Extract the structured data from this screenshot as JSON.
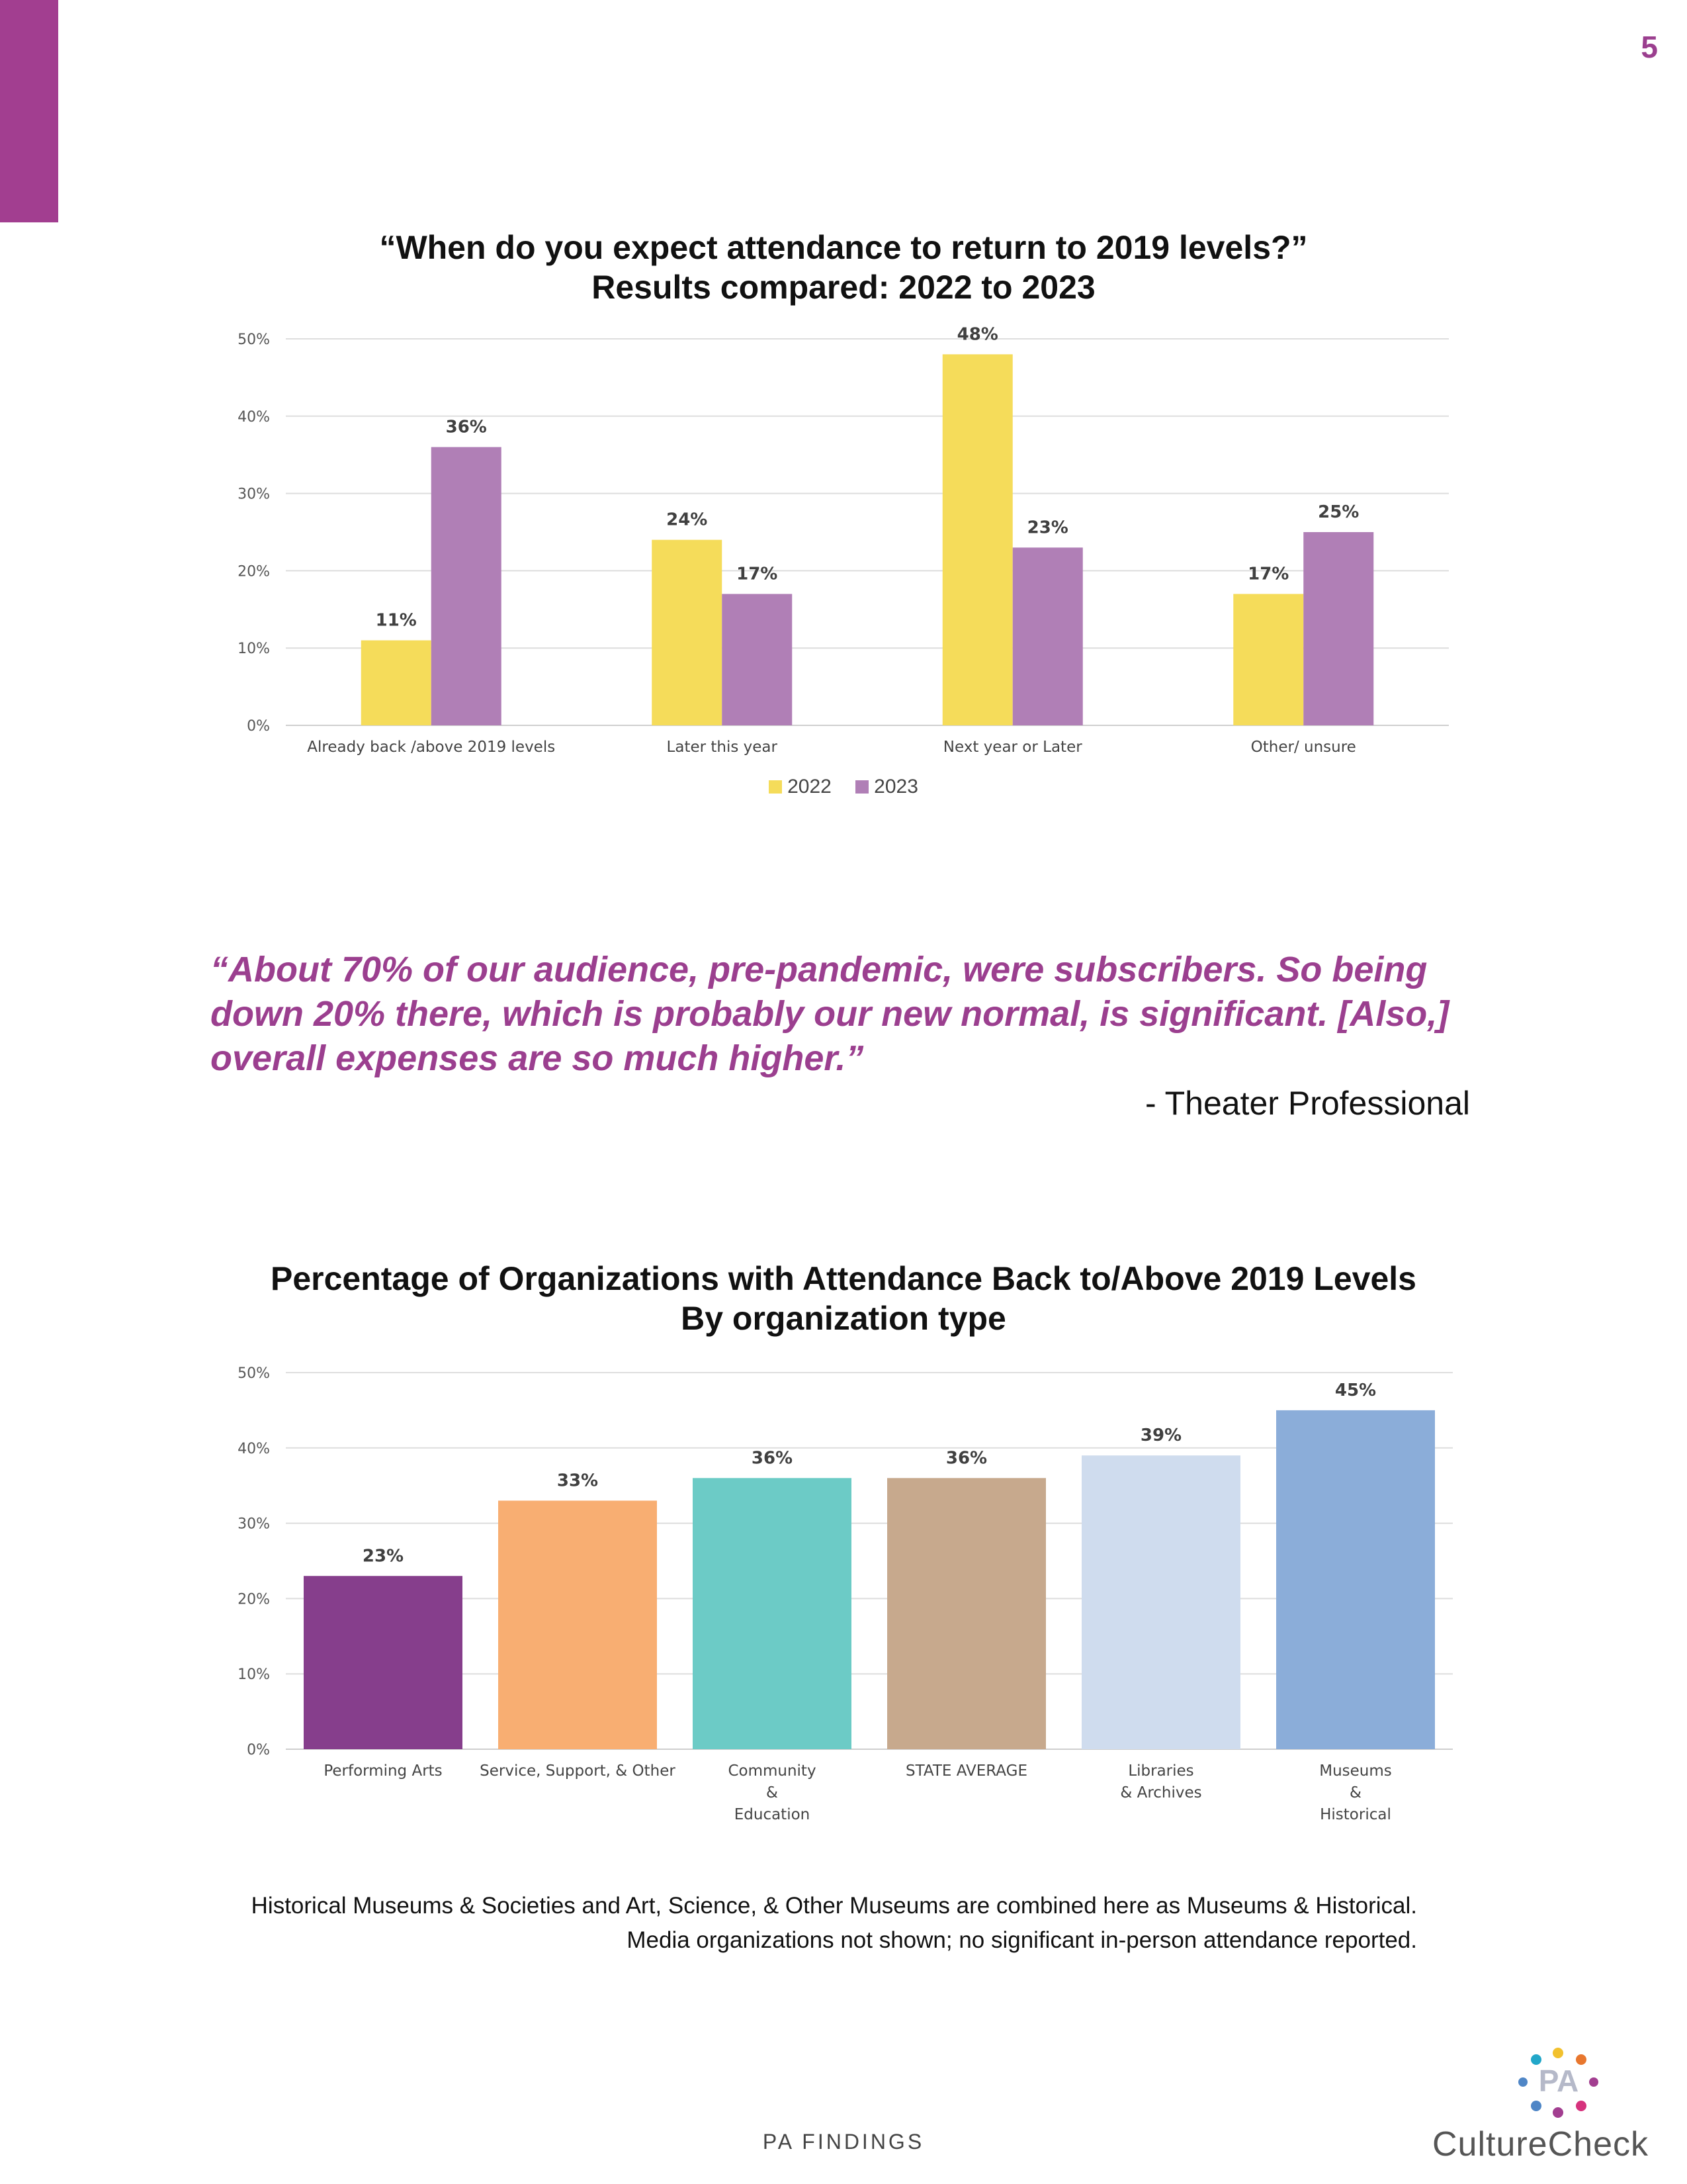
{
  "page": {
    "number": "5",
    "footer_label": "PA FINDINGS",
    "brand_color": "#a23e90"
  },
  "logo": {
    "mark": "PA",
    "name": "CultureCheck",
    "dot_colors": [
      "#22a7c9",
      "#f2c12e",
      "#e8772e",
      "#4f86c6",
      "#a23e90",
      "#d6337d"
    ]
  },
  "quote": {
    "text": "“About 70% of our audience, pre-pandemic, were subscribers. So being down 20% there, which is probably our new normal, is significant. [Also,] overall expenses are so much higher.”",
    "attribution": "- Theater Professional"
  },
  "footnote": {
    "line1": "Historical Museums & Societies and Art, Science, & Other Museums are combined here as Museums & Historical.",
    "line2": "Media organizations not shown; no significant in-person attendance reported."
  },
  "chart_data": [
    {
      "type": "bar",
      "title_line1": "“When do you expect attendance to return to 2019 levels?”",
      "title_line2": "Results compared: 2022 to 2023",
      "categories": [
        "Already back /above 2019 levels",
        "Later this year",
        "Next year or Later",
        "Other/ unsure"
      ],
      "series": [
        {
          "name": "2022",
          "color": "#f5dc5a",
          "values": [
            11,
            24,
            48,
            17
          ],
          "labels": [
            "11%",
            "24%",
            "48%",
            "17%"
          ]
        },
        {
          "name": "2023",
          "color": "#b07fb6",
          "values": [
            36,
            17,
            23,
            25
          ],
          "labels": [
            "36%",
            "17%",
            "23%",
            "25%"
          ]
        }
      ],
      "y_ticks": [
        "0%",
        "10%",
        "20%",
        "30%",
        "40%",
        "50%"
      ],
      "ylim": [
        0,
        50
      ],
      "grid": true,
      "legend": "bottom-center"
    },
    {
      "type": "bar",
      "title_line1": "Percentage of Organizations with Attendance Back to/Above 2019 Levels",
      "title_line2": "By organization type",
      "categories": [
        [
          "Performing Arts"
        ],
        [
          "Service, Support, & Other"
        ],
        [
          "Community",
          "&",
          "Education"
        ],
        [
          "STATE AVERAGE"
        ],
        [
          "Libraries",
          "& Archives"
        ],
        [
          "Museums",
          "&",
          "Historical"
        ]
      ],
      "values": [
        23,
        33,
        36,
        36,
        39,
        45
      ],
      "labels": [
        "23%",
        "33%",
        "36%",
        "36%",
        "39%",
        "45%"
      ],
      "colors": [
        "#863e8c",
        "#f8ae72",
        "#6ccbc6",
        "#c7a98d",
        "#cfdcee",
        "#8badd9"
      ],
      "y_ticks": [
        "0%",
        "10%",
        "20%",
        "30%",
        "40%",
        "50%"
      ],
      "ylim": [
        0,
        50
      ],
      "grid": true,
      "legend": "none"
    }
  ]
}
